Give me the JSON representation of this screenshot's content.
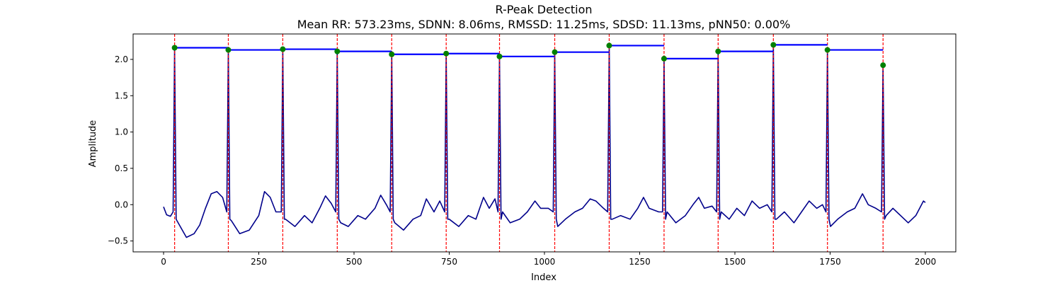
{
  "chart_data": {
    "type": "line",
    "title": "R-Peak Detection",
    "subtitle": "Mean RR: 573.23ms, SDNN: 8.06ms, RMSSD: 11.25ms, SDSD: 11.13ms, pNN50: 0.00%",
    "xlabel": "Index",
    "ylabel": "Amplitude",
    "xlim": [
      -80,
      2080
    ],
    "ylim": [
      -0.65,
      2.35
    ],
    "xticks": [
      0,
      250,
      500,
      750,
      1000,
      1250,
      1500,
      1750,
      2000
    ],
    "yticks": [
      -0.5,
      0.0,
      0.5,
      1.0,
      1.5,
      2.0
    ],
    "xtick_labels": [
      "0",
      "250",
      "500",
      "750",
      "1000",
      "1250",
      "1500",
      "1750",
      "2000"
    ],
    "ytick_labels": [
      "−0.5",
      "0.0",
      "0.5",
      "1.0",
      "1.5",
      "2.0"
    ],
    "grid": false,
    "colors": {
      "signal": "#00008b",
      "peak_lines": "#ff0000",
      "rr_segments": "#0000ff",
      "peak_markers": "#008000"
    },
    "r_peaks": [
      {
        "x": 29,
        "y": 2.16
      },
      {
        "x": 170,
        "y": 2.13
      },
      {
        "x": 313,
        "y": 2.14
      },
      {
        "x": 456,
        "y": 2.11
      },
      {
        "x": 599,
        "y": 2.07
      },
      {
        "x": 742,
        "y": 2.08
      },
      {
        "x": 882,
        "y": 2.04
      },
      {
        "x": 1027,
        "y": 2.1
      },
      {
        "x": 1170,
        "y": 2.19
      },
      {
        "x": 1314,
        "y": 2.01
      },
      {
        "x": 1456,
        "y": 2.11
      },
      {
        "x": 1601,
        "y": 2.2
      },
      {
        "x": 1743,
        "y": 2.13
      },
      {
        "x": 1889,
        "y": 1.92
      }
    ],
    "baseline": [
      [
        0,
        -0.03
      ],
      [
        8,
        -0.14
      ],
      [
        18,
        -0.16
      ],
      [
        35,
        -0.22
      ],
      [
        60,
        -0.45
      ],
      [
        80,
        -0.4
      ],
      [
        95,
        -0.28
      ],
      [
        110,
        -0.05
      ],
      [
        125,
        0.15
      ],
      [
        140,
        0.18
      ],
      [
        155,
        0.1
      ],
      [
        178,
        -0.22
      ],
      [
        200,
        -0.4
      ],
      [
        225,
        -0.35
      ],
      [
        250,
        -0.15
      ],
      [
        265,
        0.18
      ],
      [
        280,
        0.1
      ],
      [
        295,
        -0.1
      ],
      [
        320,
        -0.2
      ],
      [
        345,
        -0.3
      ],
      [
        370,
        -0.15
      ],
      [
        390,
        -0.25
      ],
      [
        410,
        -0.05
      ],
      [
        425,
        0.12
      ],
      [
        440,
        0.02
      ],
      [
        465,
        -0.25
      ],
      [
        485,
        -0.3
      ],
      [
        510,
        -0.15
      ],
      [
        530,
        -0.2
      ],
      [
        555,
        -0.05
      ],
      [
        570,
        0.13
      ],
      [
        585,
        0.0
      ],
      [
        607,
        -0.25
      ],
      [
        630,
        -0.35
      ],
      [
        655,
        -0.2
      ],
      [
        675,
        -0.15
      ],
      [
        690,
        0.08
      ],
      [
        710,
        -0.1
      ],
      [
        725,
        0.05
      ],
      [
        750,
        -0.2
      ],
      [
        775,
        -0.3
      ],
      [
        800,
        -0.15
      ],
      [
        820,
        -0.2
      ],
      [
        840,
        0.1
      ],
      [
        855,
        -0.05
      ],
      [
        870,
        0.08
      ],
      [
        890,
        -0.1
      ],
      [
        910,
        -0.25
      ],
      [
        935,
        -0.2
      ],
      [
        955,
        -0.1
      ],
      [
        975,
        0.05
      ],
      [
        990,
        -0.05
      ],
      [
        1010,
        -0.05
      ],
      [
        1035,
        -0.3
      ],
      [
        1055,
        -0.2
      ],
      [
        1080,
        -0.1
      ],
      [
        1100,
        -0.05
      ],
      [
        1120,
        0.08
      ],
      [
        1135,
        0.05
      ],
      [
        1155,
        -0.05
      ],
      [
        1178,
        -0.2
      ],
      [
        1200,
        -0.15
      ],
      [
        1225,
        -0.2
      ],
      [
        1245,
        -0.05
      ],
      [
        1260,
        0.1
      ],
      [
        1275,
        -0.05
      ],
      [
        1300,
        -0.1
      ],
      [
        1322,
        -0.1
      ],
      [
        1345,
        -0.25
      ],
      [
        1370,
        -0.15
      ],
      [
        1390,
        0.0
      ],
      [
        1405,
        0.1
      ],
      [
        1420,
        -0.05
      ],
      [
        1440,
        -0.02
      ],
      [
        1464,
        -0.1
      ],
      [
        1485,
        -0.2
      ],
      [
        1505,
        -0.05
      ],
      [
        1525,
        -0.15
      ],
      [
        1545,
        0.05
      ],
      [
        1565,
        -0.05
      ],
      [
        1585,
        0.0
      ],
      [
        1609,
        -0.2
      ],
      [
        1630,
        -0.1
      ],
      [
        1655,
        -0.25
      ],
      [
        1675,
        -0.1
      ],
      [
        1695,
        0.05
      ],
      [
        1715,
        -0.05
      ],
      [
        1730,
        0.0
      ],
      [
        1751,
        -0.3
      ],
      [
        1770,
        -0.2
      ],
      [
        1795,
        -0.1
      ],
      [
        1815,
        -0.05
      ],
      [
        1835,
        0.15
      ],
      [
        1850,
        0.0
      ],
      [
        1870,
        -0.05
      ],
      [
        1897,
        -0.15
      ],
      [
        1915,
        -0.05
      ],
      [
        1935,
        -0.15
      ],
      [
        1955,
        -0.25
      ],
      [
        1975,
        -0.15
      ],
      [
        1995,
        0.05
      ],
      [
        2000,
        0.03
      ]
    ]
  }
}
